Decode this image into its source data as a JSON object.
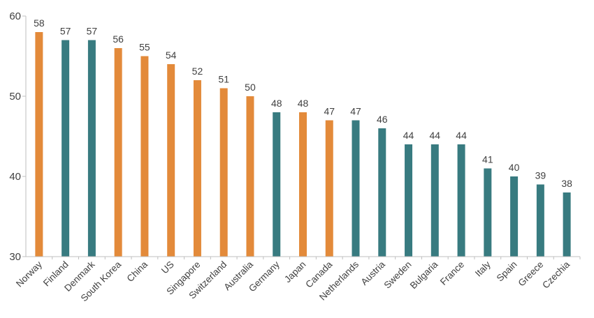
{
  "chart_data": {
    "type": "bar",
    "categories": [
      "Norway",
      "Finland",
      "Denmark",
      "South Korea",
      "China",
      "US",
      "Singapore",
      "Switzerland",
      "Australia",
      "Germany",
      "Japan",
      "Canada",
      "Netherlands",
      "Austria",
      "Sweden",
      "Bulgaria",
      "France",
      "Italy",
      "Spain",
      "Greece",
      "Czechia"
    ],
    "values": [
      58,
      57,
      57,
      56,
      55,
      54,
      52,
      51,
      50,
      48,
      48,
      47,
      47,
      46,
      44,
      44,
      44,
      41,
      40,
      39,
      38
    ],
    "bar_colors": [
      "#E38A3A",
      "#387B80",
      "#387B80",
      "#E38A3A",
      "#E38A3A",
      "#E38A3A",
      "#E38A3A",
      "#E38A3A",
      "#E38A3A",
      "#387B80",
      "#E38A3A",
      "#E38A3A",
      "#387B80",
      "#387B80",
      "#387B80",
      "#387B80",
      "#387B80",
      "#387B80",
      "#387B80",
      "#387B80",
      "#387B80"
    ],
    "title": "",
    "xlabel": "",
    "ylabel": "",
    "ylim": [
      30,
      60
    ],
    "yticks": [
      30,
      40,
      50,
      60
    ],
    "grid": false,
    "legend": "none",
    "data_labels": true,
    "colors": {
      "orange": "#E38A3A",
      "teal": "#387B80",
      "axis": "#BFBFBF",
      "text": "#404040"
    }
  }
}
